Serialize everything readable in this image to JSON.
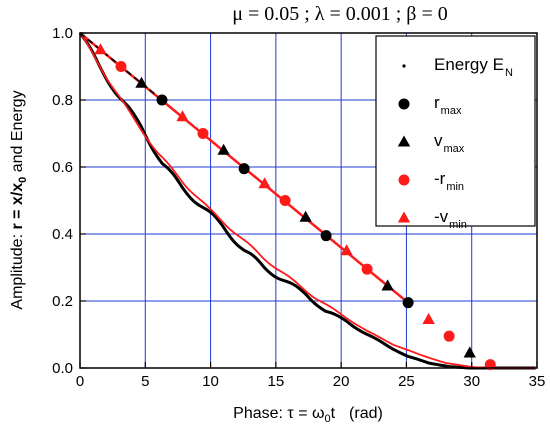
{
  "chart_data": {
    "type": "line",
    "title": "μ = 0.05 ; λ = 0.001 ; β = 0",
    "xlabel": {
      "prefix": "Phase: ",
      "tau": "τ = ω",
      "sub": "0",
      "t": "t",
      "unit": "(rad)"
    },
    "ylabel": {
      "prefix": "Amplitude: ",
      "r": "r = x/x",
      "sub": "0",
      "suffix": " and Energy"
    },
    "xlim": [
      0,
      35
    ],
    "ylim": [
      0,
      1.0
    ],
    "xticks": [
      "0",
      "5",
      "10",
      "15",
      "20",
      "25",
      "30",
      "35"
    ],
    "yticks": [
      "0.0",
      "0.2",
      "0.4",
      "0.6",
      "0.8",
      "1.0"
    ],
    "grid": true,
    "legend_position": "top-right",
    "legend": [
      {
        "main": "Energy E",
        "sub": "N",
        "marker": "dot",
        "color": "#000000"
      },
      {
        "main": "r",
        "sub": "max",
        "marker": "circle",
        "color": "#000000"
      },
      {
        "main": "v",
        "sub": "max",
        "marker": "triangle",
        "color": "#000000"
      },
      {
        "main": "-r",
        "sub": "min",
        "marker": "circle",
        "color": "#ff1a1a"
      },
      {
        "main": "-v",
        "sub": "min",
        "marker": "triangle",
        "color": "#ff1a1a"
      }
    ],
    "colors": {
      "black": "#000000",
      "red": "#ff1a1a",
      "grid": "#1f3bd6"
    },
    "energy_envelope": {
      "x": [
        0,
        31.4
      ],
      "y": [
        1.0,
        0.0
      ]
    },
    "series": [
      {
        "name": "Energy E",
        "style": "dashed",
        "color": "#000000",
        "x": [
          0,
          3.14,
          6.28,
          9.42,
          12.57,
          15.71,
          18.85,
          21.99,
          25.13,
          28.27,
          31.42
        ],
        "y": [
          1.0,
          0.9,
          0.8,
          0.7,
          0.6,
          0.5,
          0.4,
          0.3,
          0.2,
          0.09,
          0.0
        ]
      },
      {
        "name": "r max",
        "marker": "circle",
        "color": "#000000",
        "x": [
          6.28,
          12.57,
          18.85,
          25.13
        ],
        "y": [
          0.8,
          0.595,
          0.395,
          0.195
        ]
      },
      {
        "name": "v max",
        "marker": "triangle",
        "color": "#000000",
        "x": [
          4.71,
          11.0,
          17.28,
          23.56,
          29.85
        ],
        "y": [
          0.85,
          0.65,
          0.45,
          0.245,
          0.045
        ]
      },
      {
        "name": "-r min",
        "marker": "circle",
        "color": "#ff1a1a",
        "x": [
          3.14,
          9.42,
          15.71,
          21.99,
          28.27,
          31.42
        ],
        "y": [
          0.9,
          0.7,
          0.5,
          0.295,
          0.095,
          0.01
        ]
      },
      {
        "name": "-v min",
        "marker": "triangle",
        "color": "#ff1a1a",
        "x": [
          1.57,
          7.85,
          14.14,
          20.42,
          26.7
        ],
        "y": [
          0.95,
          0.75,
          0.55,
          0.35,
          0.145
        ]
      }
    ],
    "linear_fit": {
      "color": "#ff1a1a",
      "x": [
        0,
        25.13
      ],
      "y": [
        1.0,
        0.195
      ]
    },
    "amplitude_curves": [
      {
        "name": "x-amplitude decay",
        "color": "#000000",
        "x": [
          0,
          1.5,
          3.0,
          4.7,
          6.3,
          7.8,
          9.4,
          11.0,
          12.6,
          14.1,
          15.7,
          17.3,
          18.8,
          20.4,
          22.0,
          23.6,
          25.1,
          26.7,
          28.3,
          29.8,
          31.4,
          35
        ],
        "y": [
          1.0,
          0.9,
          0.81,
          0.72,
          0.61,
          0.54,
          0.48,
          0.42,
          0.35,
          0.3,
          0.26,
          0.22,
          0.17,
          0.14,
          0.1,
          0.065,
          0.035,
          0.015,
          0.004,
          0.0,
          0.0,
          0.0
        ]
      },
      {
        "name": "fit decay",
        "color": "#ff1a1a",
        "x": [
          0,
          2.0,
          4.0,
          6.0,
          8.0,
          10.0,
          12.0,
          14.0,
          16.0,
          18.0,
          20.0,
          22.0,
          24.0,
          26.0,
          28.0,
          30.0,
          31.4,
          35
        ],
        "y": [
          1.0,
          0.87,
          0.75,
          0.64,
          0.55,
          0.47,
          0.4,
          0.33,
          0.27,
          0.21,
          0.16,
          0.11,
          0.07,
          0.04,
          0.015,
          0.003,
          0.0,
          0.0
        ]
      }
    ]
  }
}
